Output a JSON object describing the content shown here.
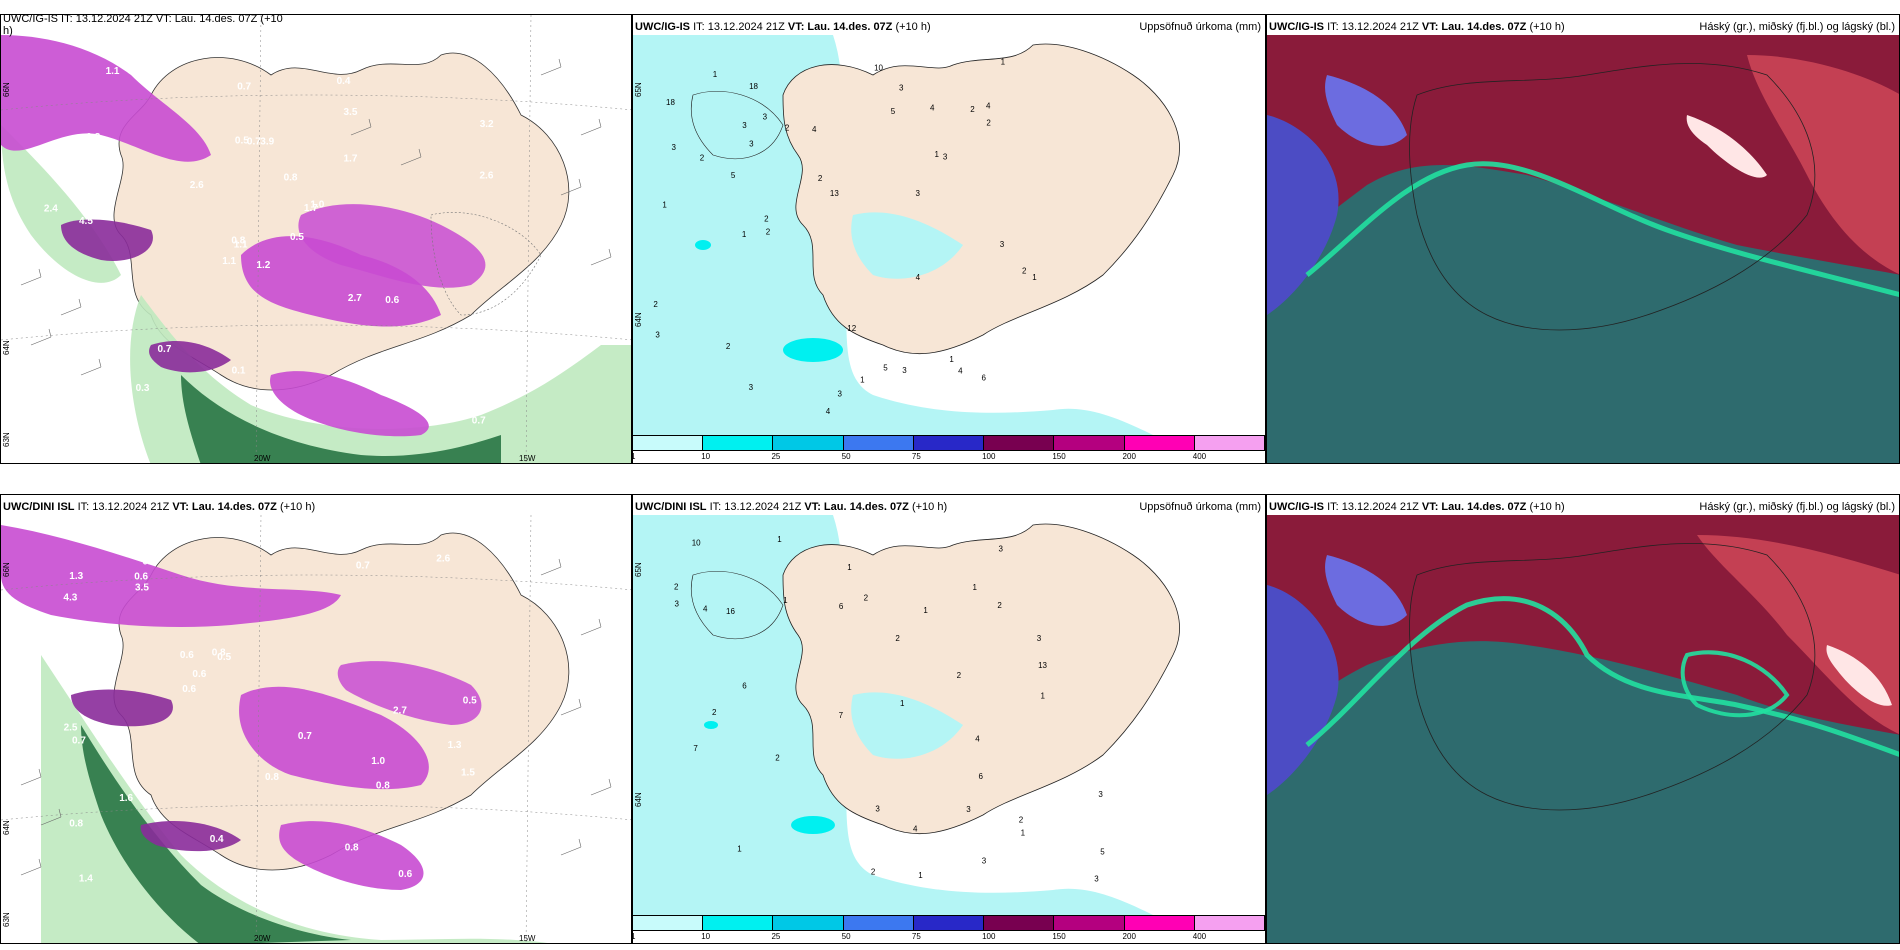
{
  "row1": {
    "left": {
      "title_partial": "UWC/IG-IS IT: 13.12.2024 21Z VT: Lau. 14.des. 07Z (+10",
      "title_wrap": "h)",
      "contour_labels": [
        "1.2",
        "1.2",
        "1.1",
        "1.6",
        "1.7",
        "0.7",
        "0.4",
        "3.9",
        "3.5",
        "0.5",
        "1.1",
        "0.7",
        "4.5",
        "3.2",
        "1.1",
        "1.7",
        "1.0",
        "0.5",
        "0.8",
        "1.4",
        "2.6",
        "1.2",
        "0.3",
        "0.7",
        "1.0",
        "0.6",
        "0.8",
        "0.7",
        "2.4",
        "2.7",
        "2.6",
        "0.8",
        "0.1"
      ],
      "lon_labels": [
        "20W",
        "15W"
      ],
      "lat_labels": [
        "66N",
        "64N",
        "63N"
      ]
    },
    "mid": {
      "model": "UWC/IG-IS",
      "it": "IT: 13.12.2024 21Z",
      "vt_label": "VT: Lau. 14.des. 07Z",
      "lead": "(+10 h)",
      "field": "Uppsöfnuð úrkoma (mm)",
      "values": [
        "3",
        "3",
        "3",
        "3",
        "2",
        "4",
        "4",
        "2",
        "4",
        "1",
        "2",
        "3",
        "1",
        "2",
        "1",
        "3",
        "2",
        "4",
        "6",
        "5",
        "4",
        "3",
        "13",
        "12",
        "4",
        "5",
        "2",
        "3",
        "1",
        "1",
        "2",
        "3",
        "1",
        "2",
        "18",
        "18",
        "2",
        "5",
        "10",
        "3",
        "3",
        "3",
        "2",
        "1",
        "1"
      ],
      "lat_labels": [
        "65N",
        "64N"
      ]
    },
    "right": {
      "model": "UWC/IG-IS",
      "it": "IT: 13.12.2024 21Z",
      "vt_label": "VT: Lau. 14.des. 07Z",
      "lead": "(+10 h)",
      "field": "Háský (gr.), miðský (fj.bl.) og lágský (bl.)"
    }
  },
  "row2": {
    "left": {
      "model": "UWC/DINI ISL",
      "it": "IT: 13.12.2024 21Z",
      "vt_label": "VT: Lau. 14.des. 07Z",
      "lead": "(+10 h)",
      "contour_labels": [
        "1.0",
        "1.3",
        "1.4",
        "0.5",
        "0.5",
        "0.6",
        "0.8",
        "0.7",
        "0.6",
        "0.4",
        "4.3",
        "2.5",
        "1.3",
        "1.9",
        "0.4",
        "0.5",
        "0.8",
        "0.7",
        "0.8",
        "1.6",
        "3.9",
        "2.6",
        "0.6",
        "1.5",
        "2.0",
        "0.6",
        "0.8",
        "0.7",
        "3.5",
        "2.7",
        "1.5",
        "0.8",
        "0.6"
      ],
      "lon_labels": [
        "20W",
        "15W"
      ],
      "lat_labels": [
        "66N",
        "64N",
        "63N"
      ]
    },
    "mid": {
      "model": "UWC/DINI ISL",
      "it": "IT: 13.12.2024 21Z",
      "vt_label": "VT: Lau. 14.des. 07Z",
      "lead": "(+10 h)",
      "field": "Uppsöfnuð úrkoma (mm)",
      "values": [
        "2",
        "1",
        "2",
        "3",
        "2",
        "2",
        "1",
        "1",
        "6",
        "7",
        "2",
        "1",
        "4",
        "4",
        "5",
        "2",
        "3",
        "3",
        "4",
        "6",
        "3",
        "3",
        "2",
        "7",
        "13",
        "16",
        "10",
        "3",
        "1",
        "1",
        "1",
        "2",
        "3",
        "1",
        "2",
        "6",
        "1",
        "1",
        "3"
      ],
      "lat_labels": [
        "65N",
        "64N"
      ]
    },
    "right": {
      "model": "UWC/IG-IS",
      "it": "IT: 13.12.2024 21Z",
      "vt_label": "VT: Lau. 14.des. 07Z",
      "lead": "(+10 h)",
      "field": "Háský (gr.), miðský (fj.bl.) og lágský (bl.)"
    }
  },
  "colorbar": {
    "labels": [
      "1",
      "10",
      "25",
      "50",
      "75",
      "100",
      "150",
      "200",
      "400"
    ],
    "colors": [
      "#c8fbfb",
      "#00f0f0",
      "#00c8e6",
      "#3c78f0",
      "#2828c8",
      "#780050",
      "#b4007f",
      "#ff00b4",
      "#f5a0f0"
    ]
  },
  "colors": {
    "land": "#f7e6d6",
    "sea": "#ffffff",
    "precip_light": "#b4f5f5",
    "precip_mid": "#00f0f0",
    "purple": "#c84bd2",
    "green_light": "#bfe9bf",
    "green_dark": "#1e6e3c",
    "cloud_teal": "#2e6b6e",
    "cloud_red": "#8a1b3a",
    "cloud_blue": "#4c4cc4"
  }
}
